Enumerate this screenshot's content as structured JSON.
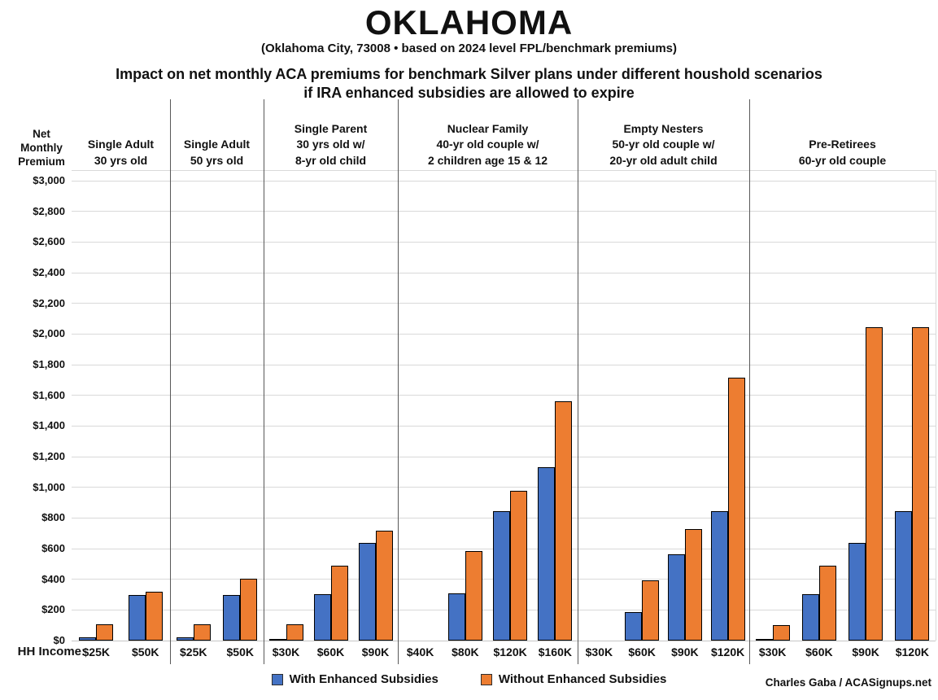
{
  "title": "OKLAHOMA",
  "subtitle": "(Oklahoma City, 73008 • based on 2024 level FPL/benchmark premiums)",
  "heading_line1": "Impact on net monthly ACA premiums for benchmark Silver plans under different houshold scenarios",
  "heading_line2": "if IRA enhanced subsidies are allowed to expire",
  "y_axis_title_lines": [
    "Net",
    "Monthly",
    "Premium"
  ],
  "x_axis_prefix": "HH Income:",
  "credit": "Charles Gaba / ACASignups.net",
  "colors": {
    "with_subsidies": "#4472C4",
    "without_subsidies": "#ED7D31",
    "gridline": "#D9D9D9",
    "divider": "#595959"
  },
  "legend": [
    {
      "name": "with-enhanced-subsidies",
      "label": "With Enhanced Subsidies",
      "color": "#4472C4"
    },
    {
      "name": "without-enhanced-subsidies",
      "label": "Without Enhanced Subsidies",
      "color": "#ED7D31"
    }
  ],
  "chart_data": {
    "type": "bar",
    "title": "Impact on net monthly ACA premiums for benchmark Silver plans under different houshold scenarios if IRA enhanced subsidies are allowed to expire",
    "xlabel": "HH Income",
    "ylabel": "Net Monthly Premium",
    "ylim": [
      0,
      3000
    ],
    "ytick_step": 200,
    "grid": true,
    "legend_position": "bottom",
    "series": [
      "With Enhanced Subsidies",
      "Without Enhanced Subsidies"
    ],
    "groups": [
      {
        "header_lines": [
          "Single Adult",
          "30 yrs old"
        ],
        "categories": [
          "$25K",
          "$50K"
        ],
        "with_enhanced": [
          20,
          295
        ],
        "without_enhanced": [
          105,
          320
        ]
      },
      {
        "header_lines": [
          "Single Adult",
          "50 yrs old"
        ],
        "categories": [
          "$25K",
          "$50K"
        ],
        "with_enhanced": [
          20,
          295
        ],
        "without_enhanced": [
          105,
          405
        ]
      },
      {
        "header_lines": [
          "Single Parent",
          "30 yrs old w/",
          "8-yr old child"
        ],
        "categories": [
          "$30K",
          "$60K",
          "$90K"
        ],
        "with_enhanced": [
          5,
          305,
          635
        ],
        "without_enhanced": [
          105,
          490,
          715
        ]
      },
      {
        "header_lines": [
          "Nuclear Family",
          "40-yr old couple w/",
          "2 children age 15 & 12"
        ],
        "categories": [
          "$40K",
          "$80K",
          "$120K",
          "$160K"
        ],
        "with_enhanced": [
          0,
          310,
          845,
          1130
        ],
        "without_enhanced": [
          0,
          585,
          975,
          1560
        ]
      },
      {
        "header_lines": [
          "Empty Nesters",
          "50-yr old couple w/",
          "20-yr old adult child"
        ],
        "categories": [
          "$30K",
          "$60K",
          "$90K",
          "$120K"
        ],
        "with_enhanced": [
          0,
          185,
          565,
          845
        ],
        "without_enhanced": [
          0,
          395,
          730,
          1715
        ]
      },
      {
        "header_lines": [
          "Pre-Retirees",
          "60-yr old couple"
        ],
        "categories": [
          "$30K",
          "$60K",
          "$90K",
          "$120K"
        ],
        "with_enhanced": [
          5,
          305,
          635,
          845
        ],
        "without_enhanced": [
          100,
          490,
          2045,
          2045
        ]
      }
    ]
  }
}
